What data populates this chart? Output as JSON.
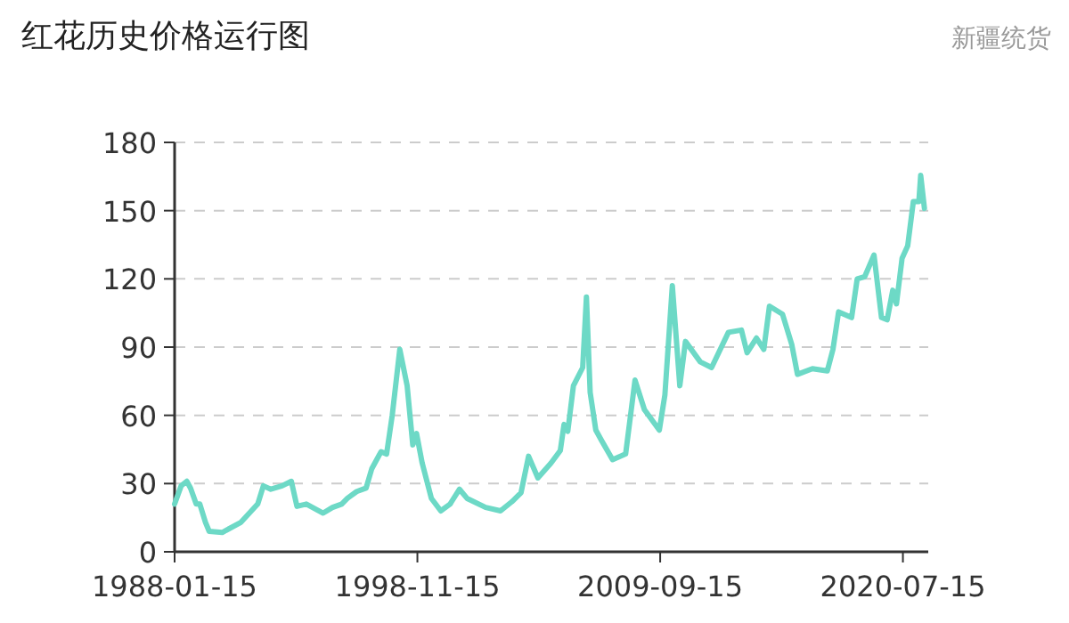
{
  "chart_data": {
    "type": "line",
    "title": "红花历史价格运行图",
    "subtitle": "新疆统货",
    "xlim": [
      "1988-01-15",
      "2021-09-01"
    ],
    "xticks": [
      "1988-01-15",
      "1998-11-15",
      "2009-09-15",
      "2020-07-15"
    ],
    "ylim": [
      0,
      180
    ],
    "yticks": [
      0,
      30,
      60,
      90,
      120,
      150,
      180
    ],
    "grid": "y",
    "x": [
      "1988-01-15",
      "1988-05",
      "1988-08",
      "1988-10",
      "1989-01",
      "1989-03",
      "1989-06",
      "1989-08",
      "1990-03",
      "1991-01",
      "1991-10",
      "1992-01",
      "1992-05",
      "1992-11",
      "1993-04",
      "1993-07",
      "1993-12",
      "1994-09",
      "1995-02",
      "1995-07",
      "1995-10",
      "1996-03",
      "1996-08",
      "1996-11",
      "1997-04",
      "1997-07",
      "1997-10",
      "1998-02",
      "1998-06",
      "1998-09",
      "1998-11",
      "1999-02",
      "1999-07",
      "1999-12",
      "2000-05",
      "2000-10",
      "2001-02",
      "2001-12",
      "2002-08",
      "2003-02",
      "2003-07",
      "2003-11",
      "2004-04",
      "2004-11",
      "2005-04",
      "2005-06",
      "2005-08",
      "2005-11",
      "2006-04",
      "2006-06",
      "2006-08",
      "2006-11",
      "2007-02",
      "2007-08",
      "2008-03",
      "2008-08",
      "2009-01",
      "2009-09",
      "2009-12",
      "2010-04",
      "2010-08",
      "2010-11",
      "2011-07",
      "2012-01",
      "2012-10",
      "2013-05",
      "2013-08",
      "2014-01",
      "2014-05",
      "2014-08",
      "2015-03",
      "2015-08",
      "2015-11",
      "2016-07",
      "2017-03",
      "2017-06",
      "2017-09",
      "2018-04",
      "2018-07",
      "2018-11",
      "2019-04",
      "2019-08",
      "2019-11",
      "2020-02",
      "2020-04",
      "2020-07",
      "2020-10",
      "2021-01",
      "2021-04",
      "2021-05",
      "2021-07"
    ],
    "series": [
      {
        "color": "#6dd9c6",
        "values": [
          21,
          29,
          31,
          28,
          21,
          21,
          13,
          9,
          8.5,
          13,
          21,
          29,
          27.5,
          29,
          31,
          20,
          21,
          17,
          19.5,
          21,
          23.5,
          26.5,
          28,
          36.5,
          44,
          43,
          60,
          89,
          73,
          47,
          52,
          39,
          23.5,
          18,
          21,
          27.5,
          23.5,
          19.5,
          18,
          22,
          26,
          42,
          32.5,
          39,
          44.5,
          56,
          53,
          73,
          81,
          112,
          70,
          53.5,
          49,
          40.5,
          43,
          75.5,
          62.5,
          53.5,
          69,
          117,
          73,
          92.5,
          83.5,
          81,
          96.5,
          97.5,
          87.5,
          94,
          89,
          108,
          104.5,
          91,
          78,
          80.5,
          79.5,
          89,
          105.5,
          103,
          120,
          121,
          130.5,
          103,
          102,
          115,
          109,
          129,
          134.5,
          154,
          154,
          165.5,
          151
        ]
      }
    ]
  }
}
